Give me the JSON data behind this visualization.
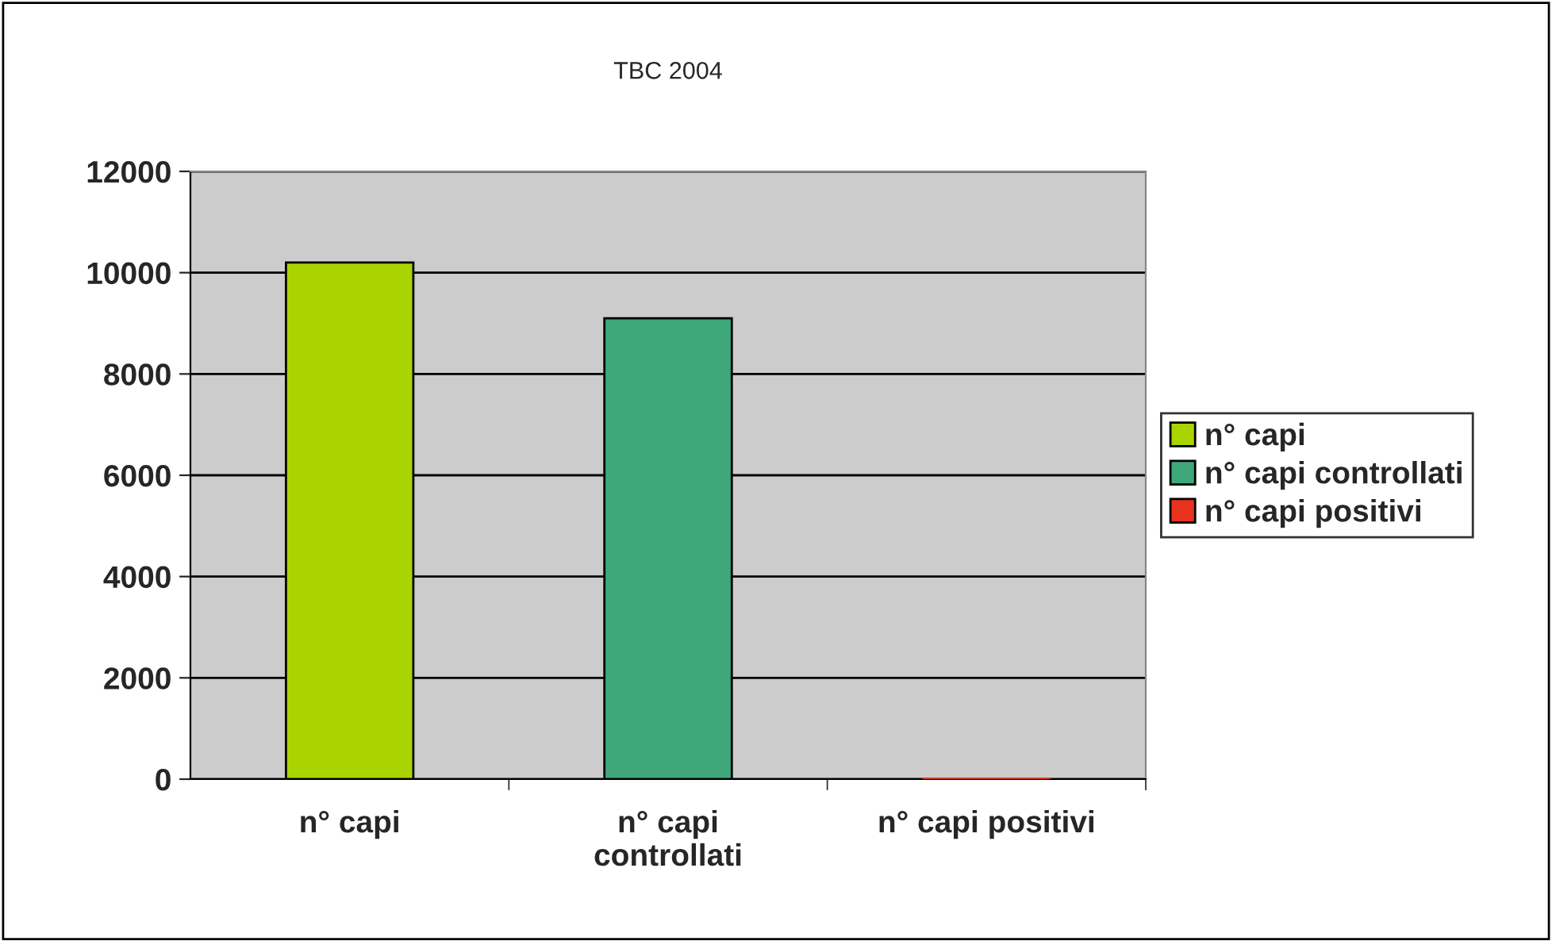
{
  "chart_data": {
    "type": "bar",
    "title": "TBC 2004",
    "categories": [
      "n° capi",
      "n° capi\ncontrollati",
      "n° capi positivi"
    ],
    "series": [
      {
        "name": "n° capi",
        "color": "#aad400",
        "values": [
          10200,
          null,
          null
        ]
      },
      {
        "name": "n° capi controllati",
        "color": "#3fa87a",
        "values": [
          null,
          9100,
          null
        ]
      },
      {
        "name": "n° capi positivi",
        "color": "#e8321e",
        "values": [
          null,
          null,
          0
        ]
      }
    ],
    "ylim": [
      0,
      12000
    ],
    "yticks": [
      0,
      2000,
      4000,
      6000,
      8000,
      10000,
      12000
    ],
    "grid": "y",
    "legend": "right"
  }
}
